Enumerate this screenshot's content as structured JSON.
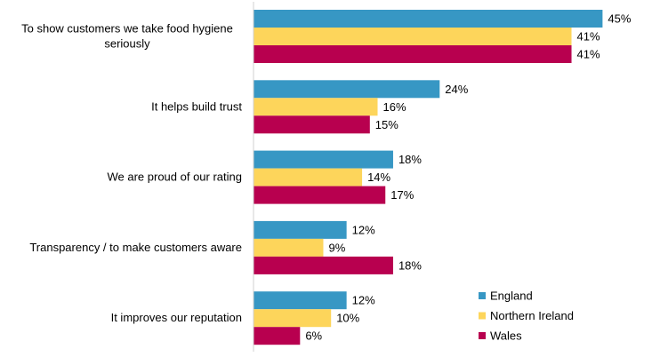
{
  "chart_data": {
    "type": "bar",
    "orientation": "horizontal",
    "categories": [
      "To show customers we take food hygiene seriously",
      "It helps build trust",
      "We are proud of our rating",
      "Transparency / to make customers aware",
      "It improves our reputation"
    ],
    "category_lines": [
      [
        "To show customers we take food hygiene",
        "seriously"
      ],
      [
        "It helps build trust"
      ],
      [
        "We are proud of our rating"
      ],
      [
        "Transparency / to make customers aware"
      ],
      [
        "It improves our reputation"
      ]
    ],
    "series": [
      {
        "name": "England",
        "color": "#3797C4",
        "values": [
          45,
          24,
          18,
          12,
          12
        ]
      },
      {
        "name": "Northern Ireland",
        "color": "#FDD55B",
        "values": [
          41,
          16,
          14,
          9,
          10
        ]
      },
      {
        "name": "Wales",
        "color": "#B8004F",
        "values": [
          41,
          15,
          17,
          18,
          6
        ]
      }
    ],
    "value_suffix": "%",
    "xlim": [
      0,
      50
    ],
    "grid": false,
    "legend_position": "bottom-right"
  }
}
